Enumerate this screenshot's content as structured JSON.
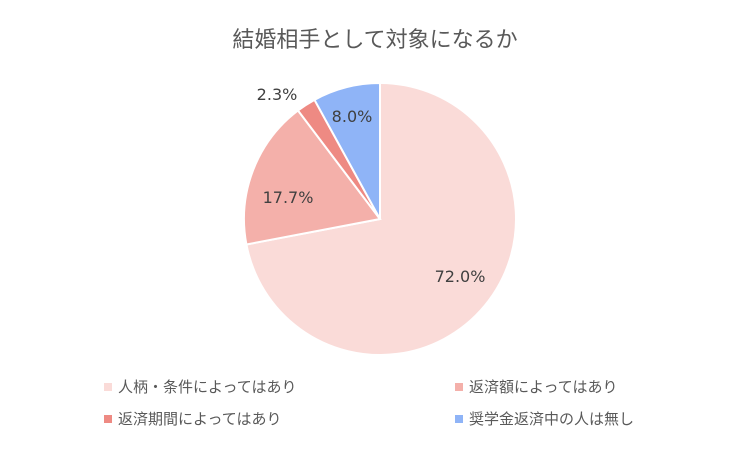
{
  "chart_data": {
    "type": "pie",
    "title": "結婚相手として対象になるか",
    "slices": [
      {
        "name": "人柄・条件によってはあり",
        "value": 72.0,
        "label": "72.0%",
        "color": "#FADBD8"
      },
      {
        "name": "返済額によってはあり",
        "value": 17.7,
        "label": "17.7%",
        "color": "#F4B0AA"
      },
      {
        "name": "返済期間によってはあり",
        "value": 2.3,
        "label": "2.3%",
        "color": "#EE8A83"
      },
      {
        "name": "奨学金返済中の人は無し",
        "value": 8.0,
        "label": "8.0%",
        "color": "#8FB4F7"
      }
    ],
    "legend_position": "bottom"
  }
}
